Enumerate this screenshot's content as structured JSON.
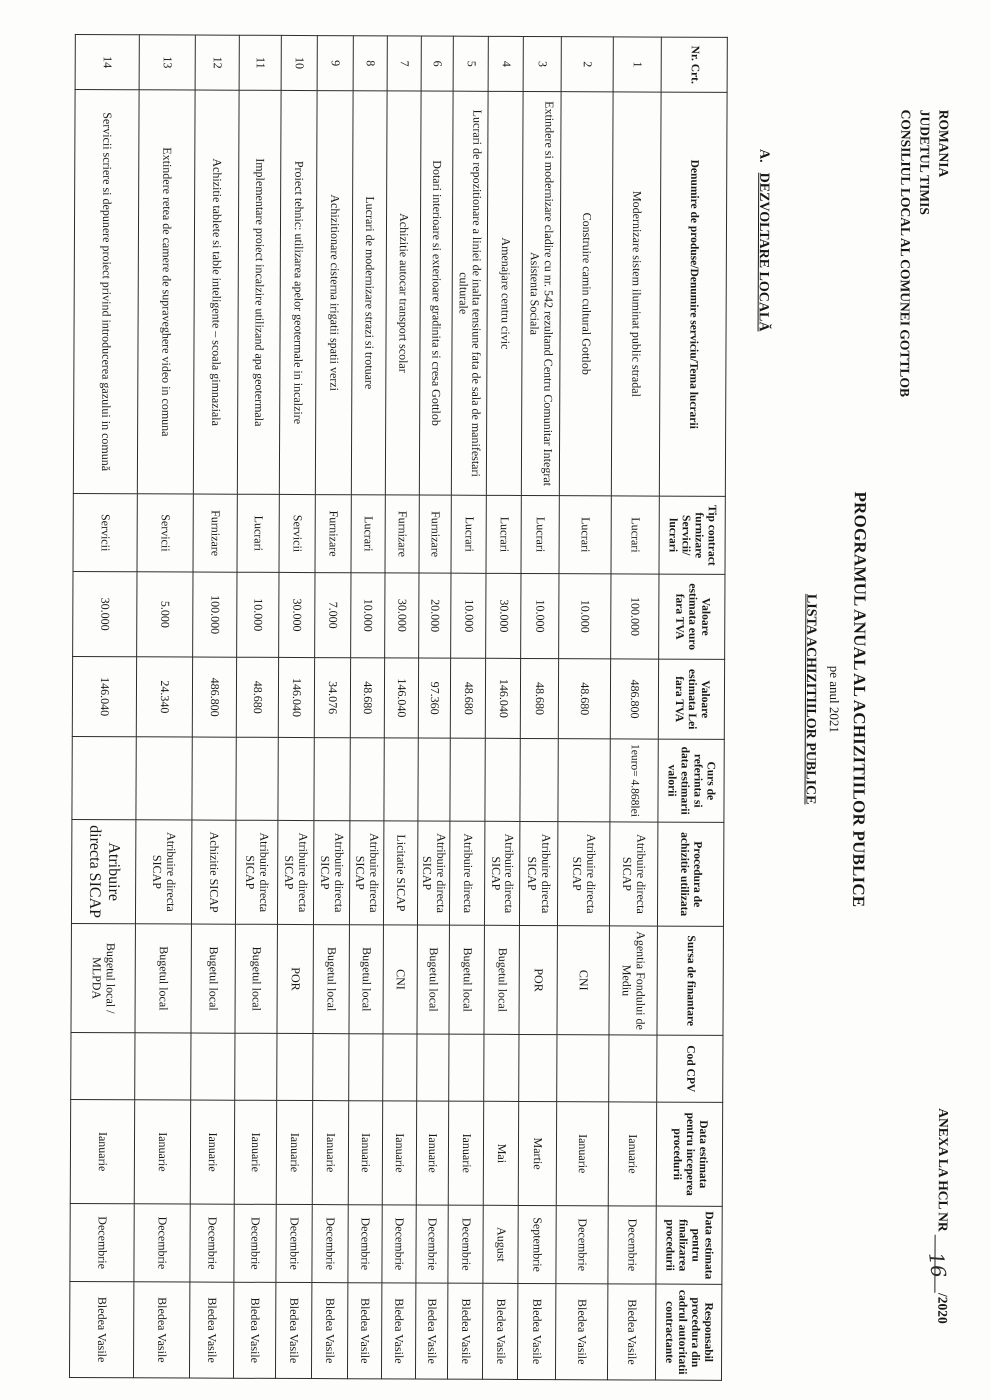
{
  "document": {
    "authority": [
      "ROMANIA",
      "JUDETUL TIMIS",
      "CONSILIUL LOCAL AL COMUNEI GOTTLOB"
    ],
    "annex": {
      "label": "ANEXA LA HCL NR",
      "handwritten_number": "16",
      "suffix": "/2020"
    },
    "title": "PROGRAMUL ANUAL AL ACHIZITIILOR PUBLICE",
    "subtitle": "pe anul 2021",
    "list_title": "LISTA ACHIZITIILOR PUBLICE",
    "section": {
      "index": "A.",
      "label": "DEZVOLTARE LOCALĂ"
    }
  },
  "table": {
    "headers": [
      "Nr. Crt.",
      "Denumire de produse/Denumire serviciu/Tema lucrarii",
      "Tip contract furnizare Servicii/ lucrari",
      "Valoare estimata euro fara TVA",
      "Valoare estimata Lei fara TVA",
      "Curs de referinta si data estimarii valorii",
      "Procedura de achizitie utilizata",
      "Sursa de finantare",
      "Cod CPV",
      "Data estimata pentru inceperea procedurii",
      "Data estimata pentru finalizarea procedurii",
      "Responsabil procedura din cadrul autoritatii contractante"
    ],
    "rows": [
      {
        "nr": "1",
        "denumire": "Modernizare sistem  iluminat public stradal",
        "tip": "Lucrari",
        "euro": "100.000",
        "lei": "486.800",
        "curs": "1euro= 4.868lei",
        "procedura": "Atribuire directa SICAP",
        "sursa": "Agentia Fondului de Mediu",
        "cpv": "",
        "incepere": "Ianuarie",
        "finalizare": "Decembrie",
        "responsabil": "Bledea Vasile"
      },
      {
        "nr": "2",
        "denumire": "Construire camin cultural Gottlob",
        "tip": "Lucrari",
        "euro": "10.000",
        "lei": "48.680",
        "curs": "",
        "procedura": "Atribuire directa SICAP",
        "sursa": "CNI",
        "cpv": "",
        "incepere": "Ianuarie",
        "finalizare": "Decembrie",
        "responsabil": "Bledea Vasile"
      },
      {
        "nr": "3",
        "denumire": "Extindere si modernizare cladire cu nr. 542 rezultand Centru Comunitar Integrat Asistenta Sociala",
        "tip": "Lucrari",
        "euro": "10.000",
        "lei": "48.680",
        "curs": "",
        "procedura": "Atribuire directa SICAP",
        "sursa": "POR",
        "cpv": "",
        "incepere": "Martie",
        "finalizare": "Septembrie",
        "responsabil": "Bledea Vasile"
      },
      {
        "nr": "4",
        "denumire": "Amenajare centru civic",
        "tip": "Lucrari",
        "euro": "30.000",
        "lei": "146.040",
        "curs": "",
        "procedura": "Atribuire directa SICAP",
        "sursa": "Bugetul local",
        "cpv": "",
        "incepere": "Mai",
        "finalizare": "August",
        "responsabil": "Bledea Vasile"
      },
      {
        "nr": "5",
        "denumire": "Lucrari de repozitionare a liniei de inalta tensiune fata de sala de manifestari culturale",
        "tip": "Lucrari",
        "euro": "10.000",
        "lei": "48.680",
        "curs": "",
        "procedura": "Atribuire directa",
        "sursa": "Bugetul local",
        "cpv": "",
        "incepere": "Ianuarie",
        "finalizare": "Decembrie",
        "responsabil": "Bledea Vasile"
      },
      {
        "nr": "6",
        "denumire": "Dotari interioare si exterioare gradinita si cresa Gottlob",
        "tip": "Furnizare",
        "euro": "20.000",
        "lei": "97.360",
        "curs": "",
        "procedura": "Atribuire directa SICAP",
        "sursa": "Bugetul local",
        "cpv": "",
        "incepere": "Ianuarie",
        "finalizare": "Decembrie",
        "responsabil": "Bledea Vasile"
      },
      {
        "nr": "7",
        "denumire": "Achizitie autocar transport scolar",
        "tip": "Furnizare",
        "euro": "30.000",
        "lei": "146.040",
        "curs": "",
        "procedura": "Licitatie SICAP",
        "sursa": "CNI",
        "cpv": "",
        "incepere": "Ianuarie",
        "finalizare": "Decembrie",
        "responsabil": "Bledea Vasile"
      },
      {
        "nr": "8",
        "denumire": "Lucrari de modernizare strazi si trotuare",
        "tip": "Lucrari",
        "euro": "10.000",
        "lei": "48.680",
        "curs": "",
        "procedura": "Atribuire directa SICAP",
        "sursa": "Bugetul local",
        "cpv": "",
        "incepere": "Ianuarie",
        "finalizare": "Decembrie",
        "responsabil": "Bledea Vasile"
      },
      {
        "nr": "9",
        "denumire": "Achizitionare cisterna irigatii spatii verzi",
        "tip": "Furnizare",
        "euro": "7.000",
        "lei": "34.076",
        "curs": "",
        "procedura": "Atribuire directa SICAP",
        "sursa": "Bugetul local",
        "cpv": "",
        "incepere": "Ianuarie",
        "finalizare": "Decembrie",
        "responsabil": "Bledea Vasile"
      },
      {
        "nr": "10",
        "denumire": "Proiect tehnic: utilizarea apelor geotermale in incalzire",
        "tip": "Servicii",
        "euro": "30.000",
        "lei": "146.040",
        "curs": "",
        "procedura": "Atribuire directa SICAP",
        "sursa": "POR",
        "cpv": "",
        "incepere": "Ianuarie",
        "finalizare": "Decembrie",
        "responsabil": "Bledea Vasile"
      },
      {
        "nr": "11",
        "denumire": "Implementare proiect incalzire utilizand apa geotermala",
        "tip": "Lucrari",
        "euro": "10.000",
        "lei": "48.680",
        "curs": "",
        "procedura": "Atribuire directa SICAP",
        "sursa": "Bugetul local",
        "cpv": "",
        "incepere": "Ianuarie",
        "finalizare": "Decembrie",
        "responsabil": "Bledea Vasile"
      },
      {
        "nr": "12",
        "denumire": "Achizitie tablete si table inteligente – scoala gimnaziala",
        "tip": "Furnizare",
        "euro": "100.000",
        "lei": "486.800",
        "curs": "",
        "procedura": "Achizitie SICAP",
        "sursa": "Bugetul local",
        "cpv": "",
        "incepere": "Ianuarie",
        "finalizare": "Decembrie",
        "responsabil": "Bledea Vasile"
      },
      {
        "nr": "13",
        "denumire": "Extindere retea de camere de supraveghere video in comuna",
        "tip": "Servicii",
        "euro": "5.000",
        "lei": "24.340",
        "curs": "",
        "procedura": "Atribuire directa SICAP",
        "sursa": "Bugetul local",
        "cpv": "",
        "incepere": "Ianuarie",
        "finalizare": "Decembrie",
        "responsabil": "Bledea Vasile"
      },
      {
        "nr": "14",
        "denumire": "Servicii scriere si depunere proiect privind introducerea gazului in comună",
        "tip": "Servicii",
        "euro": "30.000",
        "lei": "146.040",
        "curs": "",
        "procedura": "Atribuire directa SICAP",
        "sursa": "Bugetul local / MLPDA",
        "cpv": "",
        "incepere": "Ianuarie",
        "finalizare": "Decembrie",
        "responsabil": "Bledea Vasile"
      }
    ]
  }
}
